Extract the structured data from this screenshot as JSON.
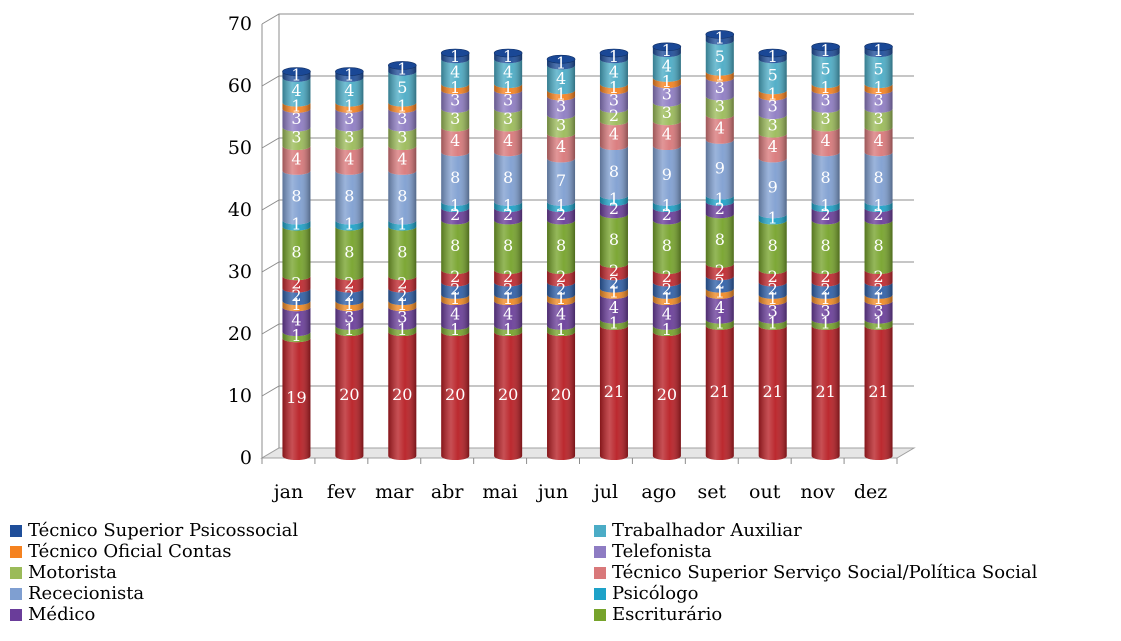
{
  "chart_data": {
    "type": "bar",
    "stacked": true,
    "style": "3d-cylinder",
    "categories": [
      "jan",
      "fev",
      "mar",
      "abr",
      "mai",
      "jun",
      "jul",
      "ago",
      "set",
      "out",
      "nov",
      "dez"
    ],
    "ylim": [
      0,
      70
    ],
    "yticks": [
      "0",
      "10",
      "20",
      "30",
      "40",
      "50",
      "60",
      "70"
    ],
    "grid": true,
    "legend_position": "bottom",
    "series": [
      {
        "name": "Técnico Superior Psicossocial",
        "color": "#1f4e9a",
        "values": [
          1,
          1,
          1,
          1,
          1,
          1,
          1,
          1,
          1,
          1,
          1,
          1
        ]
      },
      {
        "name": "Trabalhador Auxiliar",
        "color": "#4bacc6",
        "values": [
          4,
          4,
          5,
          4,
          4,
          4,
          4,
          4,
          5,
          5,
          5,
          5
        ]
      },
      {
        "name": "Técnico Oficial Contas",
        "color": "#f58220",
        "values": [
          1,
          1,
          1,
          1,
          1,
          1,
          1,
          1,
          1,
          1,
          1,
          1
        ]
      },
      {
        "name": "Telefonista",
        "color": "#8e7cc3",
        "values": [
          3,
          3,
          3,
          3,
          3,
          3,
          3,
          3,
          3,
          3,
          3,
          3
        ]
      },
      {
        "name": "Motorista",
        "color": "#9bbb59",
        "values": [
          3,
          3,
          3,
          3,
          3,
          3,
          2,
          3,
          3,
          3,
          3,
          3
        ]
      },
      {
        "name": "Técnico Superior Serviço Social/Política Social",
        "color": "#d9787a",
        "values": [
          4,
          4,
          4,
          4,
          4,
          4,
          4,
          4,
          4,
          4,
          4,
          4
        ]
      },
      {
        "name": "Rececionista",
        "color": "#7f9fd1",
        "values": [
          8,
          8,
          8,
          8,
          8,
          7,
          8,
          9,
          9,
          9,
          8,
          8
        ]
      },
      {
        "name": "Psicólogo",
        "color": "#1ea2c8",
        "values": [
          1,
          1,
          1,
          1,
          1,
          1,
          1,
          1,
          1,
          1,
          1,
          1
        ]
      },
      {
        "name": "Médico",
        "color": "#6a3d9a",
        "values": [
          0,
          0,
          0,
          2,
          2,
          2,
          2,
          2,
          2,
          0,
          2,
          2
        ]
      },
      {
        "name": "Escriturário",
        "color": "#76a32b",
        "values": [
          8,
          8,
          8,
          8,
          8,
          8,
          8,
          8,
          8,
          8,
          8,
          8
        ]
      }
    ],
    "unlisted_segments": {
      "note": "stack segments below Escriturário (colors shown on chart, labels not in visible legend)",
      "segments": [
        {
          "color": "#c0272d",
          "values": [
            2,
            2,
            2,
            2,
            2,
            2,
            2,
            2,
            2,
            2,
            2,
            2
          ]
        },
        {
          "color": "#2e5fa8",
          "values": [
            2,
            2,
            2,
            2,
            2,
            2,
            2,
            2,
            2,
            2,
            2,
            2
          ]
        },
        {
          "color": "#f08a24",
          "values": [
            1,
            1,
            1,
            1,
            1,
            1,
            1,
            1,
            1,
            1,
            1,
            1
          ]
        },
        {
          "color": "#6a3d9a",
          "values": [
            4,
            3,
            3,
            4,
            4,
            4,
            4,
            4,
            4,
            3,
            3,
            3
          ]
        },
        {
          "color": "#76a32b",
          "values": [
            1,
            1,
            1,
            1,
            1,
            1,
            1,
            1,
            1,
            1,
            1,
            1
          ]
        },
        {
          "color": "#b81e24",
          "values": [
            19,
            20,
            20,
            20,
            20,
            20,
            21,
            20,
            21,
            21,
            21,
            21
          ]
        }
      ]
    }
  }
}
